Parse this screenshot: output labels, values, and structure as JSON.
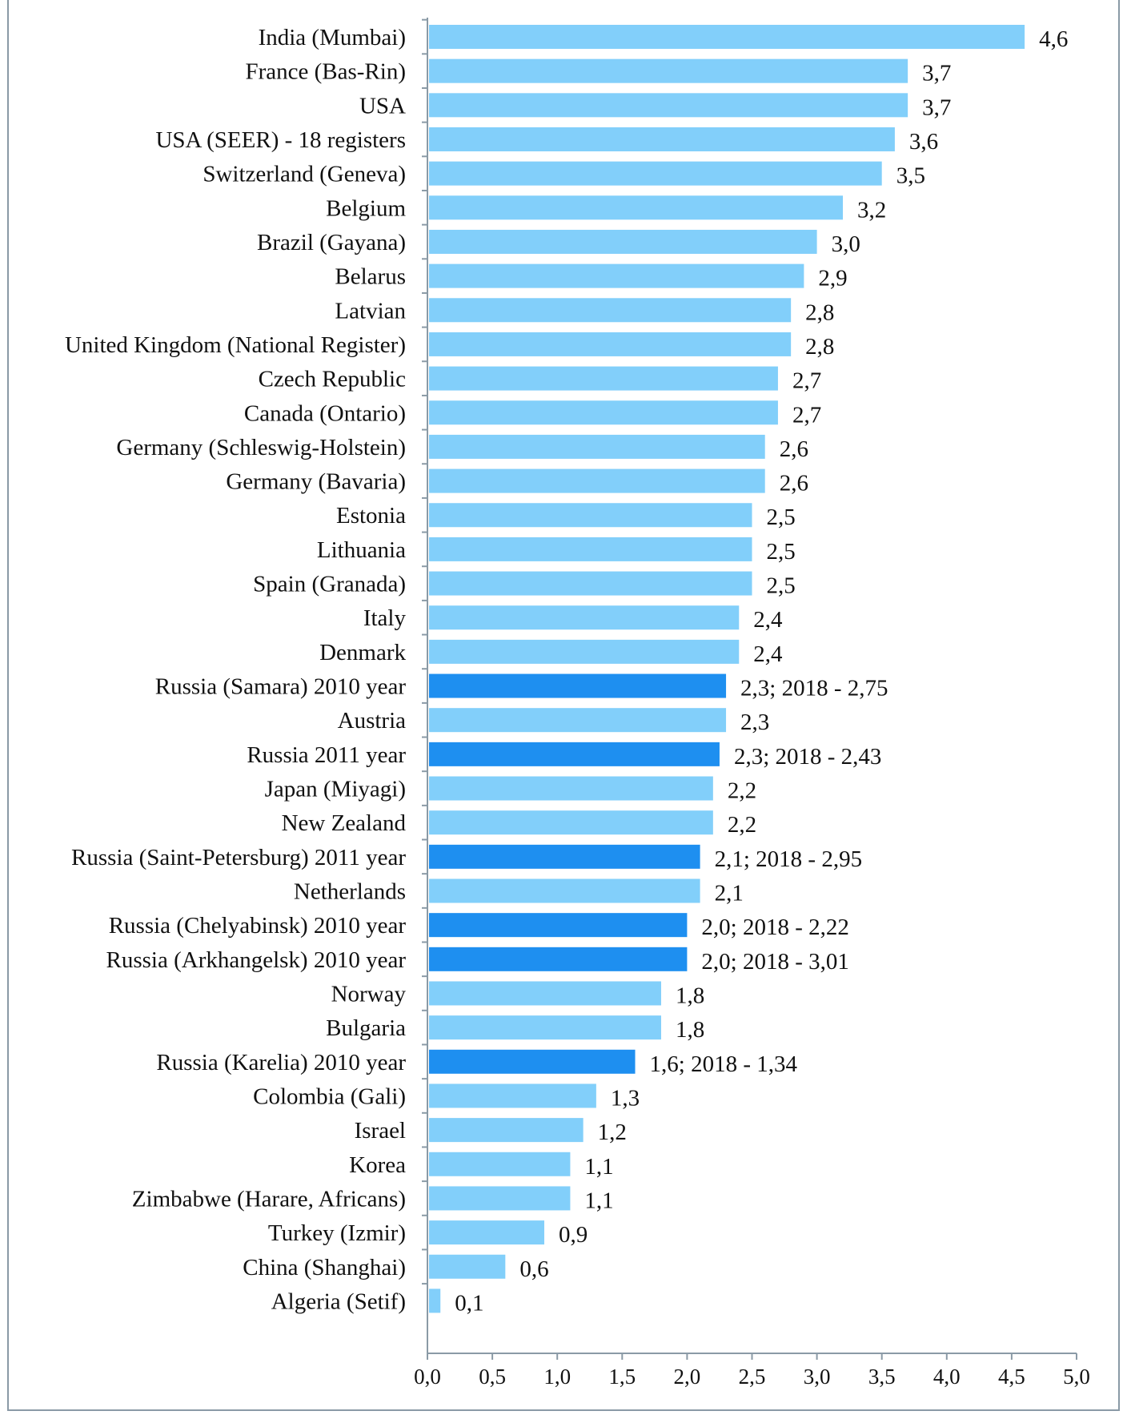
{
  "chart_data": {
    "type": "bar",
    "orientation": "horizontal",
    "title": "",
    "xlabel": "",
    "ylabel": "",
    "xlim": [
      0,
      5.0
    ],
    "xticks": [
      "0,0",
      "0,5",
      "1,0",
      "1,5",
      "2,0",
      "2,5",
      "3,0",
      "3,5",
      "4,0",
      "4,5",
      "5,0"
    ],
    "grid": false,
    "colors": {
      "default": "#82CFFA",
      "highlight": "#1E8FF0"
    },
    "bars": [
      {
        "category": "India (Mumbai)",
        "value": 4.6,
        "label": "4,6",
        "highlight": false
      },
      {
        "category": "France (Bas-Rin)",
        "value": 3.7,
        "label": "3,7",
        "highlight": false
      },
      {
        "category": "USA",
        "value": 3.7,
        "label": "3,7",
        "highlight": false
      },
      {
        "category": "USA (SEER) - 18 registers",
        "value": 3.6,
        "label": "3,6",
        "highlight": false
      },
      {
        "category": "Switzerland (Geneva)",
        "value": 3.5,
        "label": "3,5",
        "highlight": false
      },
      {
        "category": "Belgium",
        "value": 3.2,
        "label": "3,2",
        "highlight": false
      },
      {
        "category": "Brazil (Gayana)",
        "value": 3.0,
        "label": "3,0",
        "highlight": false
      },
      {
        "category": "Belarus",
        "value": 2.9,
        "label": "2,9",
        "highlight": false
      },
      {
        "category": "Latvian",
        "value": 2.8,
        "label": "2,8",
        "highlight": false
      },
      {
        "category": "United Kingdom (National Register)",
        "value": 2.8,
        "label": "2,8",
        "highlight": false
      },
      {
        "category": "Czech Republic",
        "value": 2.7,
        "label": "2,7",
        "highlight": false
      },
      {
        "category": "Canada (Ontario)",
        "value": 2.7,
        "label": "2,7",
        "highlight": false
      },
      {
        "category": "Germany (Schleswig-Holstein)",
        "value": 2.6,
        "label": "2,6",
        "highlight": false
      },
      {
        "category": "Germany (Bavaria)",
        "value": 2.6,
        "label": "2,6",
        "highlight": false
      },
      {
        "category": "Estonia",
        "value": 2.5,
        "label": "2,5",
        "highlight": false
      },
      {
        "category": "Lithuania",
        "value": 2.5,
        "label": "2,5",
        "highlight": false
      },
      {
        "category": "Spain (Granada)",
        "value": 2.5,
        "label": "2,5",
        "highlight": false
      },
      {
        "category": "Italy",
        "value": 2.4,
        "label": "2,4",
        "highlight": false
      },
      {
        "category": "Denmark",
        "value": 2.4,
        "label": "2,4",
        "highlight": false
      },
      {
        "category": "Russia (Samara) 2010 year",
        "value": 2.3,
        "label": "2,3; 2018 - 2,75",
        "highlight": true
      },
      {
        "category": "Austria",
        "value": 2.3,
        "label": "2,3",
        "highlight": false
      },
      {
        "category": "Russia 2011 year",
        "value": 2.25,
        "label": "2,3; 2018 - 2,43",
        "highlight": true
      },
      {
        "category": "Japan (Miyagi)",
        "value": 2.2,
        "label": "2,2",
        "highlight": false
      },
      {
        "category": "New Zealand",
        "value": 2.2,
        "label": "2,2",
        "highlight": false
      },
      {
        "category": "Russia (Saint-Petersburg) 2011 year",
        "value": 2.1,
        "label": "2,1; 2018 - 2,95",
        "highlight": true
      },
      {
        "category": "Netherlands",
        "value": 2.1,
        "label": "2,1",
        "highlight": false
      },
      {
        "category": "Russia (Chelyabinsk) 2010 year",
        "value": 2.0,
        "label": "2,0; 2018 - 2,22",
        "highlight": true
      },
      {
        "category": "Russia (Arkhangelsk) 2010 year",
        "value": 2.0,
        "label": "2,0; 2018 - 3,01",
        "highlight": true
      },
      {
        "category": "Norway",
        "value": 1.8,
        "label": "1,8",
        "highlight": false
      },
      {
        "category": "Bulgaria",
        "value": 1.8,
        "label": "1,8",
        "highlight": false
      },
      {
        "category": "Russia (Karelia) 2010 year",
        "value": 1.6,
        "label": "1,6; 2018 - 1,34",
        "highlight": true
      },
      {
        "category": "Colombia (Gali)",
        "value": 1.3,
        "label": "1,3",
        "highlight": false
      },
      {
        "category": "Israel",
        "value": 1.2,
        "label": "1,2",
        "highlight": false
      },
      {
        "category": "Korea",
        "value": 1.1,
        "label": "1,1",
        "highlight": false
      },
      {
        "category": "Zimbabwe (Harare, Africans)",
        "value": 1.1,
        "label": "1,1",
        "highlight": false
      },
      {
        "category": "Turkey (Izmir)",
        "value": 0.9,
        "label": "0,9",
        "highlight": false
      },
      {
        "category": "China (Shanghai)",
        "value": 0.6,
        "label": "0,6",
        "highlight": false
      },
      {
        "category": "Algeria (Setif)",
        "value": 0.1,
        "label": "0,1",
        "highlight": false
      }
    ]
  }
}
